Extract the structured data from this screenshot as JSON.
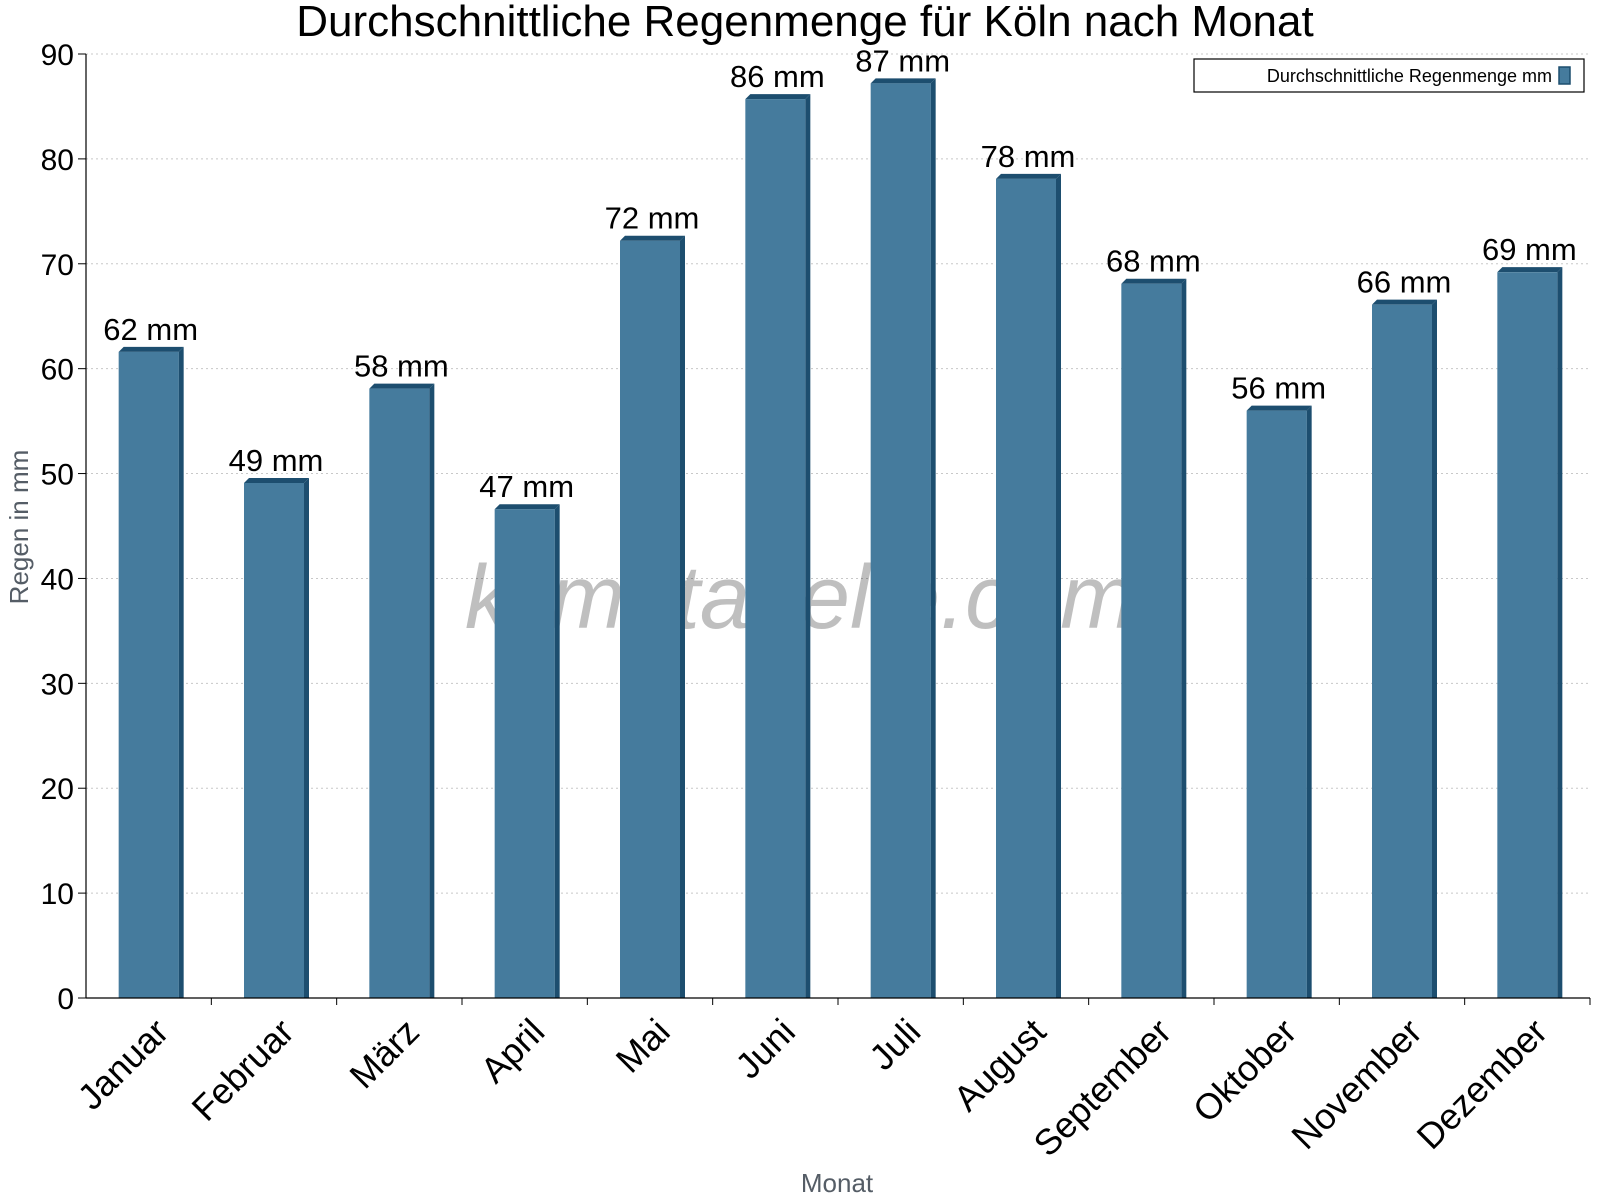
{
  "chart_data": {
    "type": "bar",
    "title": "Durchschnittliche Regenmenge für Köln nach Monat",
    "xlabel": "Monat",
    "ylabel": "Regen in mm",
    "ylim": [
      0,
      90
    ],
    "yticks": [
      0,
      10,
      20,
      30,
      40,
      50,
      60,
      70,
      80,
      90
    ],
    "grid": true,
    "legend_position": "top-right",
    "categories": [
      "Januar",
      "Februar",
      "März",
      "April",
      "Mai",
      "Juni",
      "Juli",
      "August",
      "September",
      "Oktober",
      "November",
      "Dezember"
    ],
    "series": [
      {
        "name": "Durchschnittliche Regenmenge mm",
        "values": [
          61.6,
          49.1,
          58.1,
          46.6,
          72.2,
          85.7,
          87.2,
          78.1,
          68.1,
          56.0,
          66.1,
          69.2
        ],
        "labels": [
          "62 mm",
          "49 mm",
          "58 mm",
          "47 mm",
          "72 mm",
          "86 mm",
          "87 mm",
          "78 mm",
          "68 mm",
          "56 mm",
          "66 mm",
          "69 mm"
        ],
        "color": "#457b9d",
        "edge_color": "#1d4e6f"
      }
    ],
    "watermark": "klimatabelle.com"
  }
}
